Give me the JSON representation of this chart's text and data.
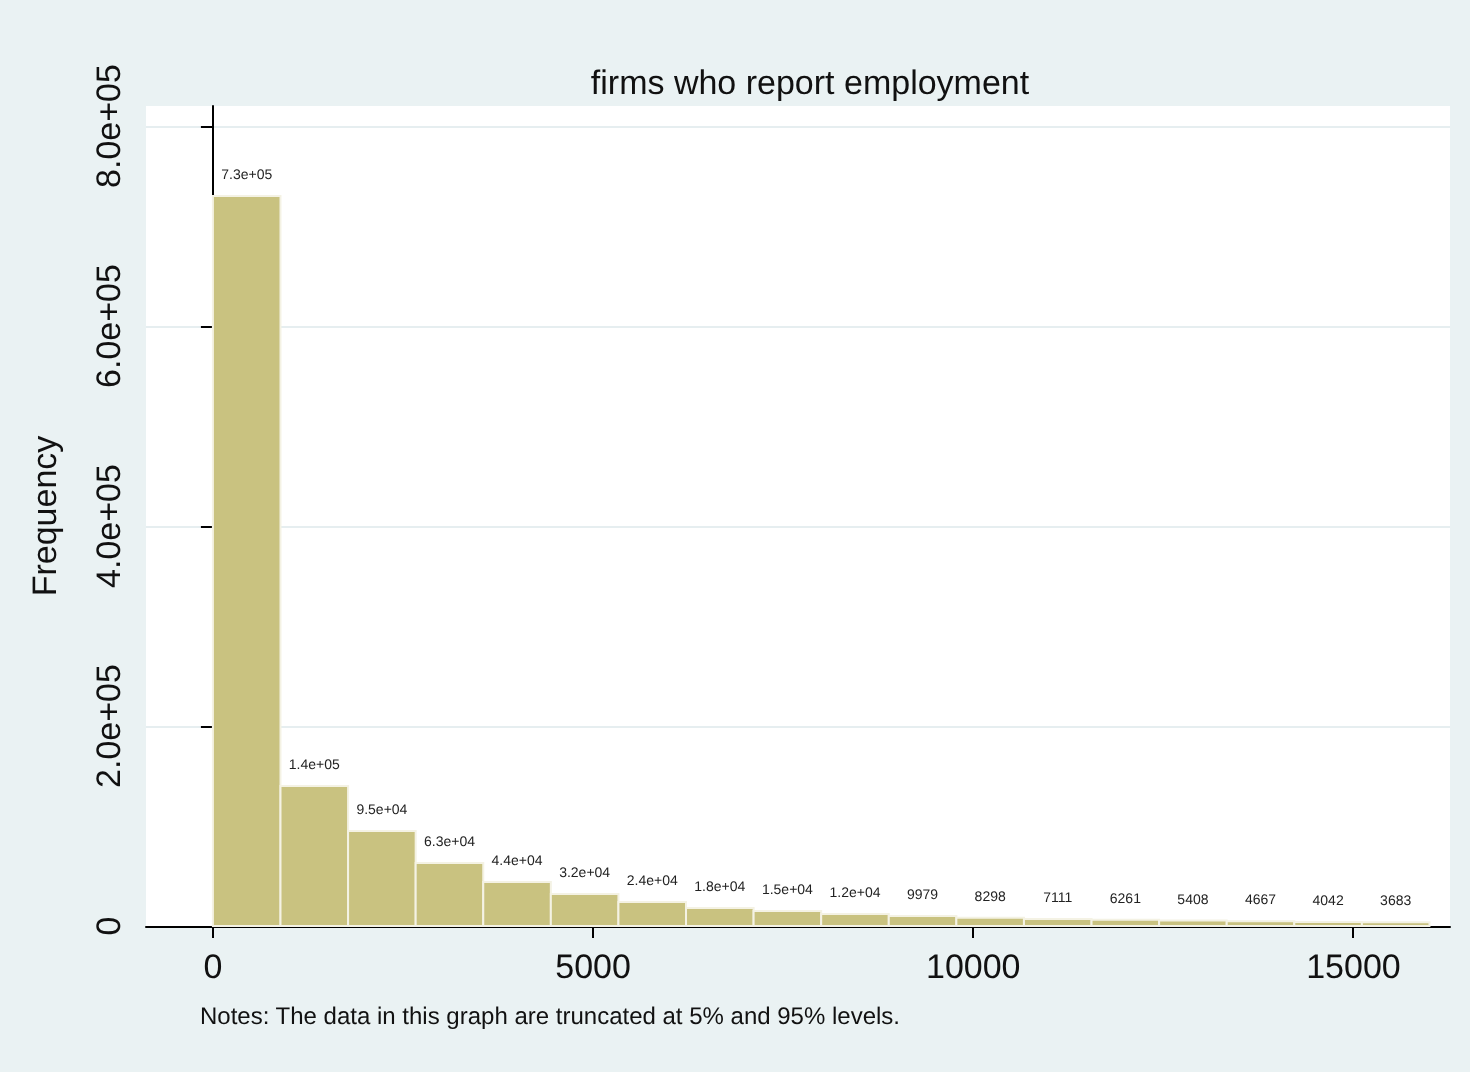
{
  "chart_data": {
    "type": "histogram",
    "title": "firms who report employment",
    "ylabel": "Frequency",
    "annotations": [
      "Notes: The data in this graph are truncated at 5% and 95% levels."
    ],
    "bins": [
      0,
      888.9,
      1777.8,
      2666.7,
      3555.6,
      4444.4,
      5333.3,
      6222.2,
      7111.1,
      8000,
      8888.9,
      9777.8,
      10666.7,
      11555.6,
      12444.4,
      13333.3,
      14222.2,
      15111.1,
      16000
    ],
    "values": [
      730000,
      140000,
      95000,
      63000,
      44000,
      32000,
      24000,
      18000,
      15000,
      12000,
      9979,
      8298,
      7111,
      6261,
      5408,
      4667,
      4042,
      3683
    ],
    "value_labels": [
      "7.3e+05",
      "1.4e+05",
      "9.5e+04",
      "6.3e+04",
      "4.4e+04",
      "3.2e+04",
      "2.4e+04",
      "1.8e+04",
      "1.5e+04",
      "1.2e+04",
      "9979",
      "8298",
      "7111",
      "6261",
      "5408",
      "4667",
      "4042",
      "3683"
    ],
    "color": "#c9c280",
    "xlim": [
      -880,
      16270
    ],
    "xticks": [
      0,
      5000,
      10000,
      15000
    ],
    "ylim": [
      0,
      820000
    ],
    "yticks": [
      {
        "value": 0,
        "label": "0"
      },
      {
        "value": 200000,
        "label": "2.0e+05"
      },
      {
        "value": 400000,
        "label": "4.0e+05"
      },
      {
        "value": 600000,
        "label": "6.0e+05"
      },
      {
        "value": 800000,
        "label": "8.0e+05"
      }
    ],
    "grid": "y"
  }
}
